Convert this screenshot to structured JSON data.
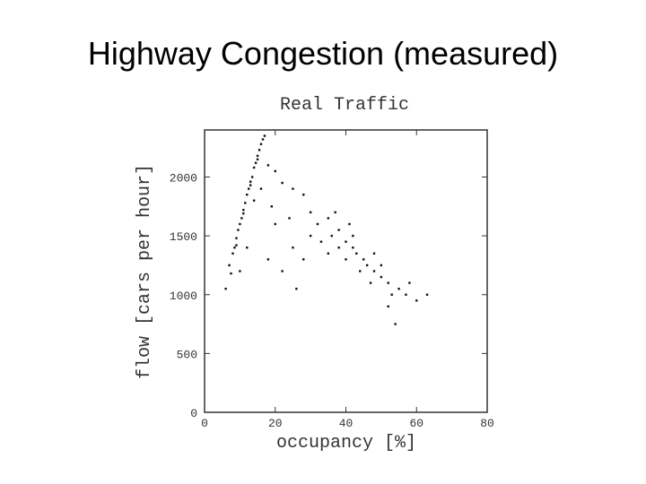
{
  "slide_title": "Highway Congestion (measured)",
  "chart_data": {
    "type": "scatter",
    "title": "Real Traffic",
    "xlabel": "occupancy [%]",
    "ylabel": "flow [cars per hour]",
    "xlim": [
      0,
      80
    ],
    "ylim": [
      0,
      2400
    ],
    "xticks": [
      0,
      20,
      40,
      60,
      80
    ],
    "yticks": [
      0,
      500,
      1000,
      1500,
      2000
    ],
    "color": "#111111",
    "x": [
      7,
      8,
      8.5,
      9,
      9.5,
      10,
      10.5,
      11,
      11.5,
      12,
      12.5,
      13,
      13.5,
      14,
      14.5,
      15,
      15.5,
      16,
      16.5,
      17,
      6,
      7.5,
      9,
      11,
      13,
      15,
      18,
      20,
      22,
      25,
      28,
      30,
      32,
      35,
      36,
      38,
      40,
      42,
      43,
      45,
      46,
      48,
      50,
      52,
      55,
      57,
      60,
      63,
      54,
      40,
      38,
      44,
      47,
      50,
      35,
      30,
      25,
      20,
      18,
      22,
      26,
      33,
      41,
      48,
      52,
      58,
      12,
      10,
      14,
      16,
      19,
      24,
      28,
      37,
      42,
      53
    ],
    "y": [
      1250,
      1350,
      1400,
      1480,
      1550,
      1600,
      1650,
      1720,
      1780,
      1850,
      1900,
      1960,
      2000,
      2080,
      2120,
      2180,
      2230,
      2280,
      2320,
      2350,
      1050,
      1180,
      1420,
      1690,
      1930,
      2150,
      2100,
      2050,
      1950,
      1900,
      1850,
      1700,
      1600,
      1650,
      1500,
      1550,
      1450,
      1400,
      1350,
      1300,
      1250,
      1200,
      1150,
      1100,
      1050,
      1000,
      950,
      1000,
      750,
      1300,
      1400,
      1200,
      1100,
      1250,
      1350,
      1500,
      1400,
      1600,
      1300,
      1200,
      1050,
      1450,
      1600,
      1350,
      900,
      1100,
      1400,
      1200,
      1800,
      1900,
      1750,
      1650,
      1300,
      1700,
      1500,
      1000
    ]
  }
}
